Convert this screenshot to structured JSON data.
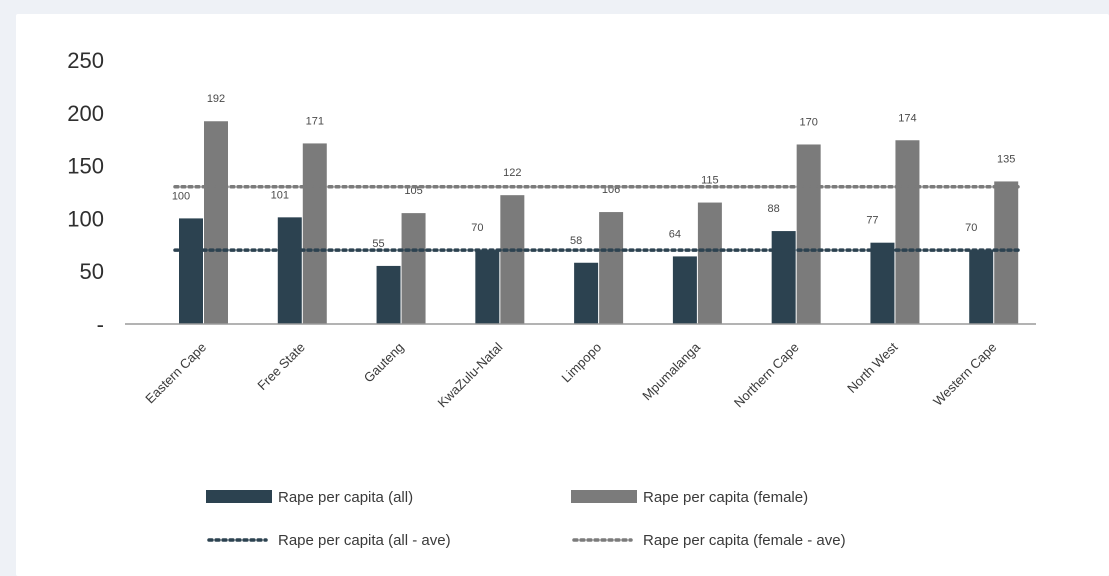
{
  "chart_data": {
    "type": "bar",
    "categories": [
      "Eastern Cape",
      "Free State",
      "Gauteng",
      "KwaZulu-Natal",
      "Limpopo",
      "Mpumalanga",
      "Northern Cape",
      "North West",
      "Western Cape"
    ],
    "series": [
      {
        "name": "Rape per capita (all)",
        "values": [
          100,
          101,
          55,
          70,
          58,
          64,
          88,
          77,
          70
        ],
        "color": "#2c4250"
      },
      {
        "name": "Rape per capita (female)",
        "values": [
          192,
          171,
          105,
          122,
          106,
          115,
          170,
          174,
          135
        ],
        "color": "#7b7b7b"
      }
    ],
    "reference_lines": [
      {
        "name": "Rape per capita (all - ave)",
        "value": 70,
        "color": "#2c4250",
        "style": "dotted"
      },
      {
        "name": "Rape per capita (female - ave)",
        "value": 130,
        "color": "#7b7b7b",
        "style": "dotted"
      }
    ],
    "yticks": [
      {
        "value": 0,
        "label": "-"
      },
      {
        "value": 50,
        "label": "50"
      },
      {
        "value": 100,
        "label": "100"
      },
      {
        "value": 150,
        "label": "150"
      },
      {
        "value": 200,
        "label": "200"
      },
      {
        "value": 250,
        "label": "250"
      }
    ],
    "ylim": [
      0,
      250
    ],
    "title": "",
    "xlabel": "",
    "ylabel": "",
    "grid": false,
    "legend_position": "bottom"
  }
}
